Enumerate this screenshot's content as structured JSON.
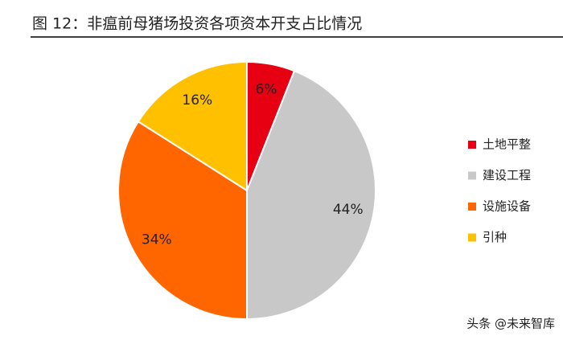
{
  "chart_data": {
    "type": "pie",
    "title": "图 12：非瘟前母猪场投资各项资本开支占比情况",
    "categories": [
      "土地平整",
      "建设工程",
      "设施设备",
      "引种"
    ],
    "values": [
      6,
      44,
      34,
      16
    ],
    "value_labels": [
      "6%",
      "44%",
      "34%",
      "16%"
    ],
    "colors": [
      "#e60012",
      "#c8c8c8",
      "#ff6600",
      "#ffc000"
    ],
    "legend": "right",
    "watermark": "头条 @未来智库"
  }
}
